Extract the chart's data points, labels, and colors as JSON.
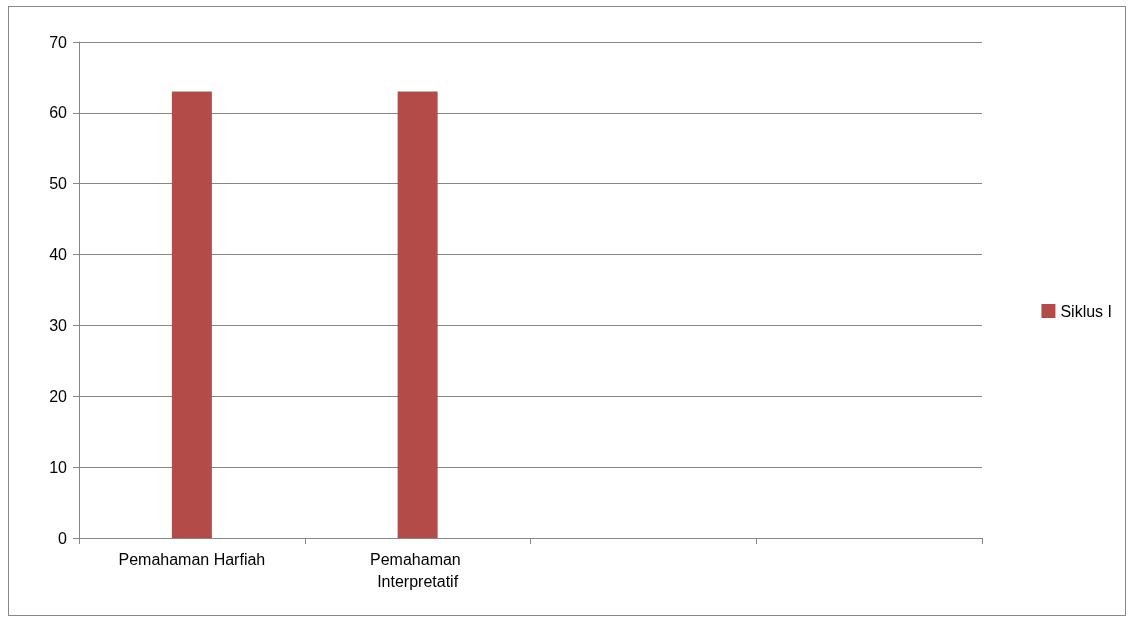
{
  "chart_data": {
    "type": "bar",
    "categories": [
      "Pemahaman Harfiah",
      "Pemahaman Interpretatif",
      null,
      null
    ],
    "series": [
      {
        "name": "Siklus I",
        "color": "#b34b48",
        "values": [
          63,
          63,
          null,
          null
        ]
      }
    ],
    "ylim": [
      0,
      70
    ],
    "yticks": [
      0,
      10,
      20,
      30,
      40,
      50,
      60,
      70
    ],
    "grid": "y",
    "legend": "right"
  }
}
